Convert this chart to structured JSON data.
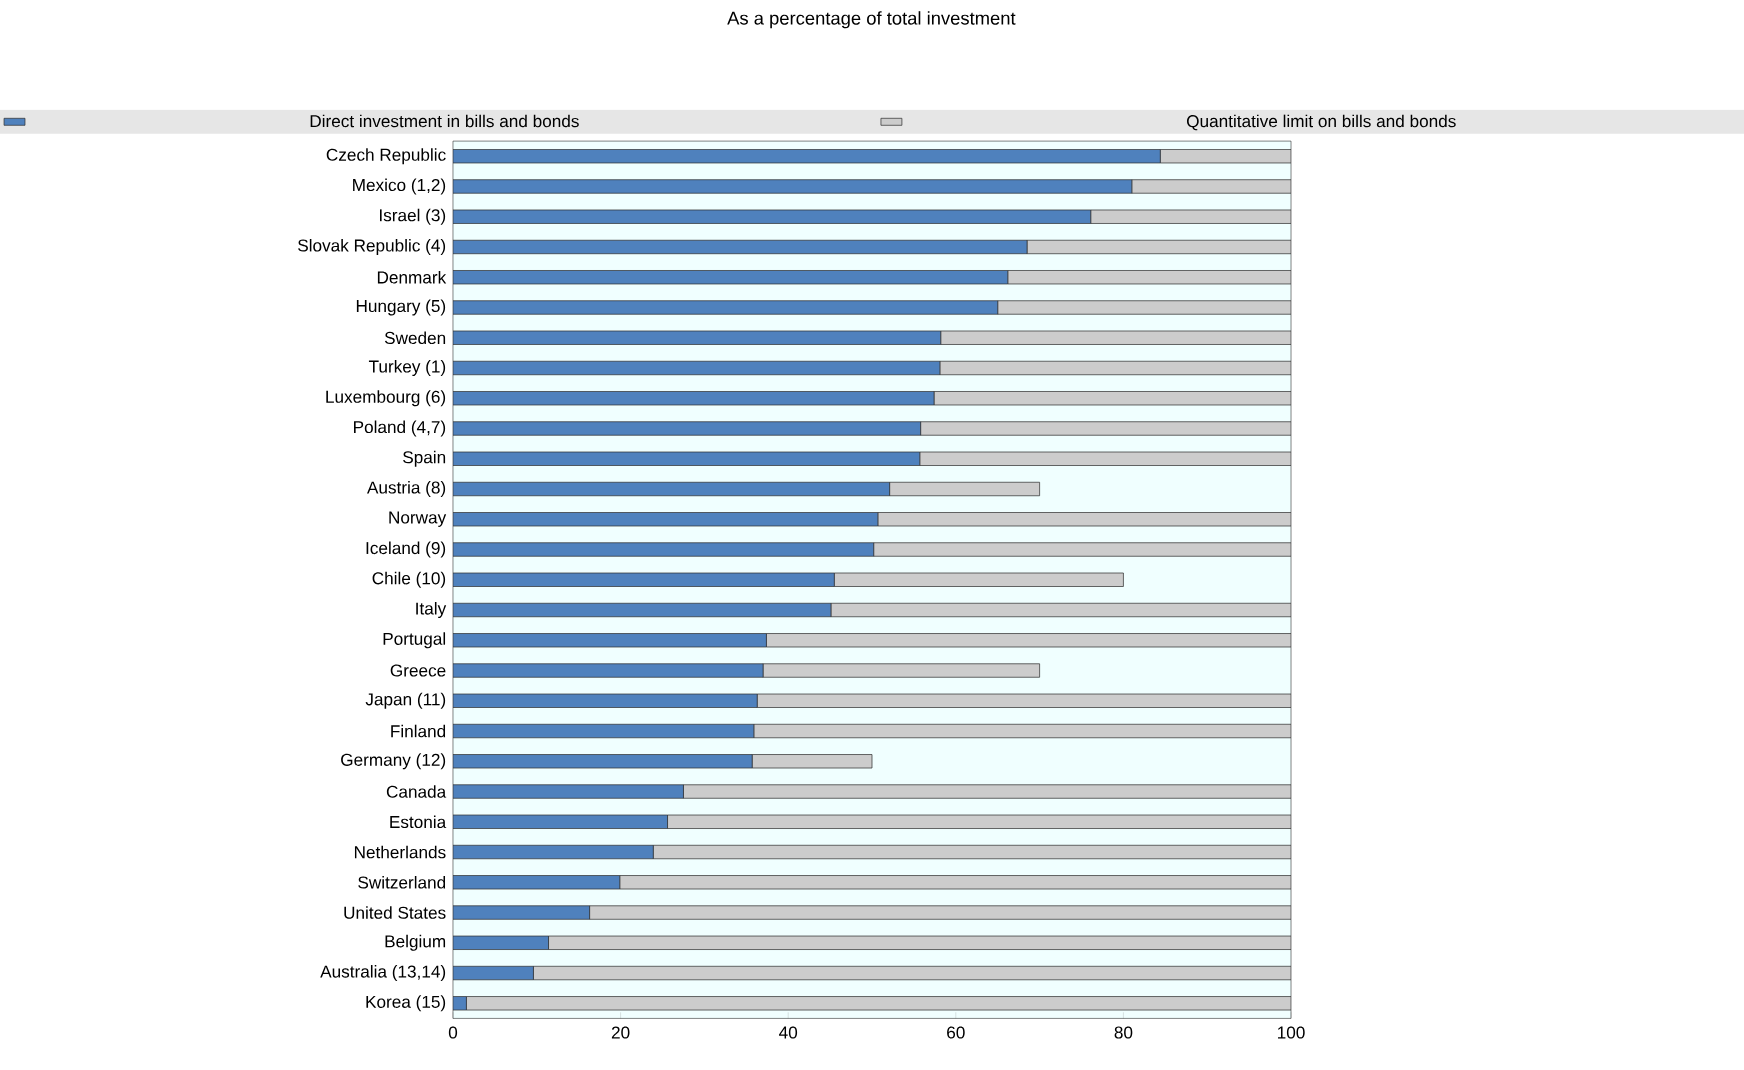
{
  "chart_data": {
    "type": "bar",
    "orientation": "horizontal",
    "stacked": true,
    "title": "As a percentage of total investment",
    "categories": [
      "Czech Republic",
      "Mexico (1,2)",
      "Israel (3)",
      "Slovak Republic (4)",
      "Denmark",
      "Hungary (5)",
      "Sweden",
      "Turkey (1)",
      "Luxembourg (6)",
      "Poland (4,7)",
      "Spain",
      "Austria (8)",
      "Norway",
      "Iceland (9)",
      "Chile (10)",
      "Italy",
      "Portugal",
      "Greece",
      "Japan (11)",
      "Finland",
      "Germany (12)",
      "Canada",
      "Estonia",
      "Netherlands",
      "Switzerland",
      "United States",
      "Belgium",
      "Australia (13,14)",
      "Korea (15)"
    ],
    "series": [
      {
        "name": "Direct investment in bills and bonds",
        "color": "#4f81bd",
        "values": [
          84.4,
          81,
          76.1,
          68.5,
          66.2,
          65,
          58.2,
          58.1,
          57.4,
          55.8,
          55.7,
          52.1,
          50.7,
          50.2,
          45.5,
          45.1,
          37.4,
          37,
          36.3,
          35.9,
          35.7,
          27.5,
          25.6,
          23.9,
          19.9,
          16.3,
          11.4,
          9.6,
          1.6
        ]
      },
      {
        "name": "Quantitative limit on bills and bonds",
        "color": "#cccccc",
        "values": [
          15.6,
          19,
          23.9,
          31.5,
          33.8,
          35,
          41.8,
          41.9,
          42.6,
          44.2,
          44.3,
          17.9,
          49.3,
          49.8,
          34.5,
          54.9,
          62.6,
          33,
          63.7,
          64.1,
          14.3,
          72.5,
          74.4,
          76.1,
          80.1,
          83.7,
          88.6,
          90.4,
          98.4
        ]
      }
    ],
    "xlim": [
      0,
      100
    ],
    "xticks": [
      0,
      20,
      40,
      60,
      80,
      100
    ],
    "legend": "top"
  }
}
